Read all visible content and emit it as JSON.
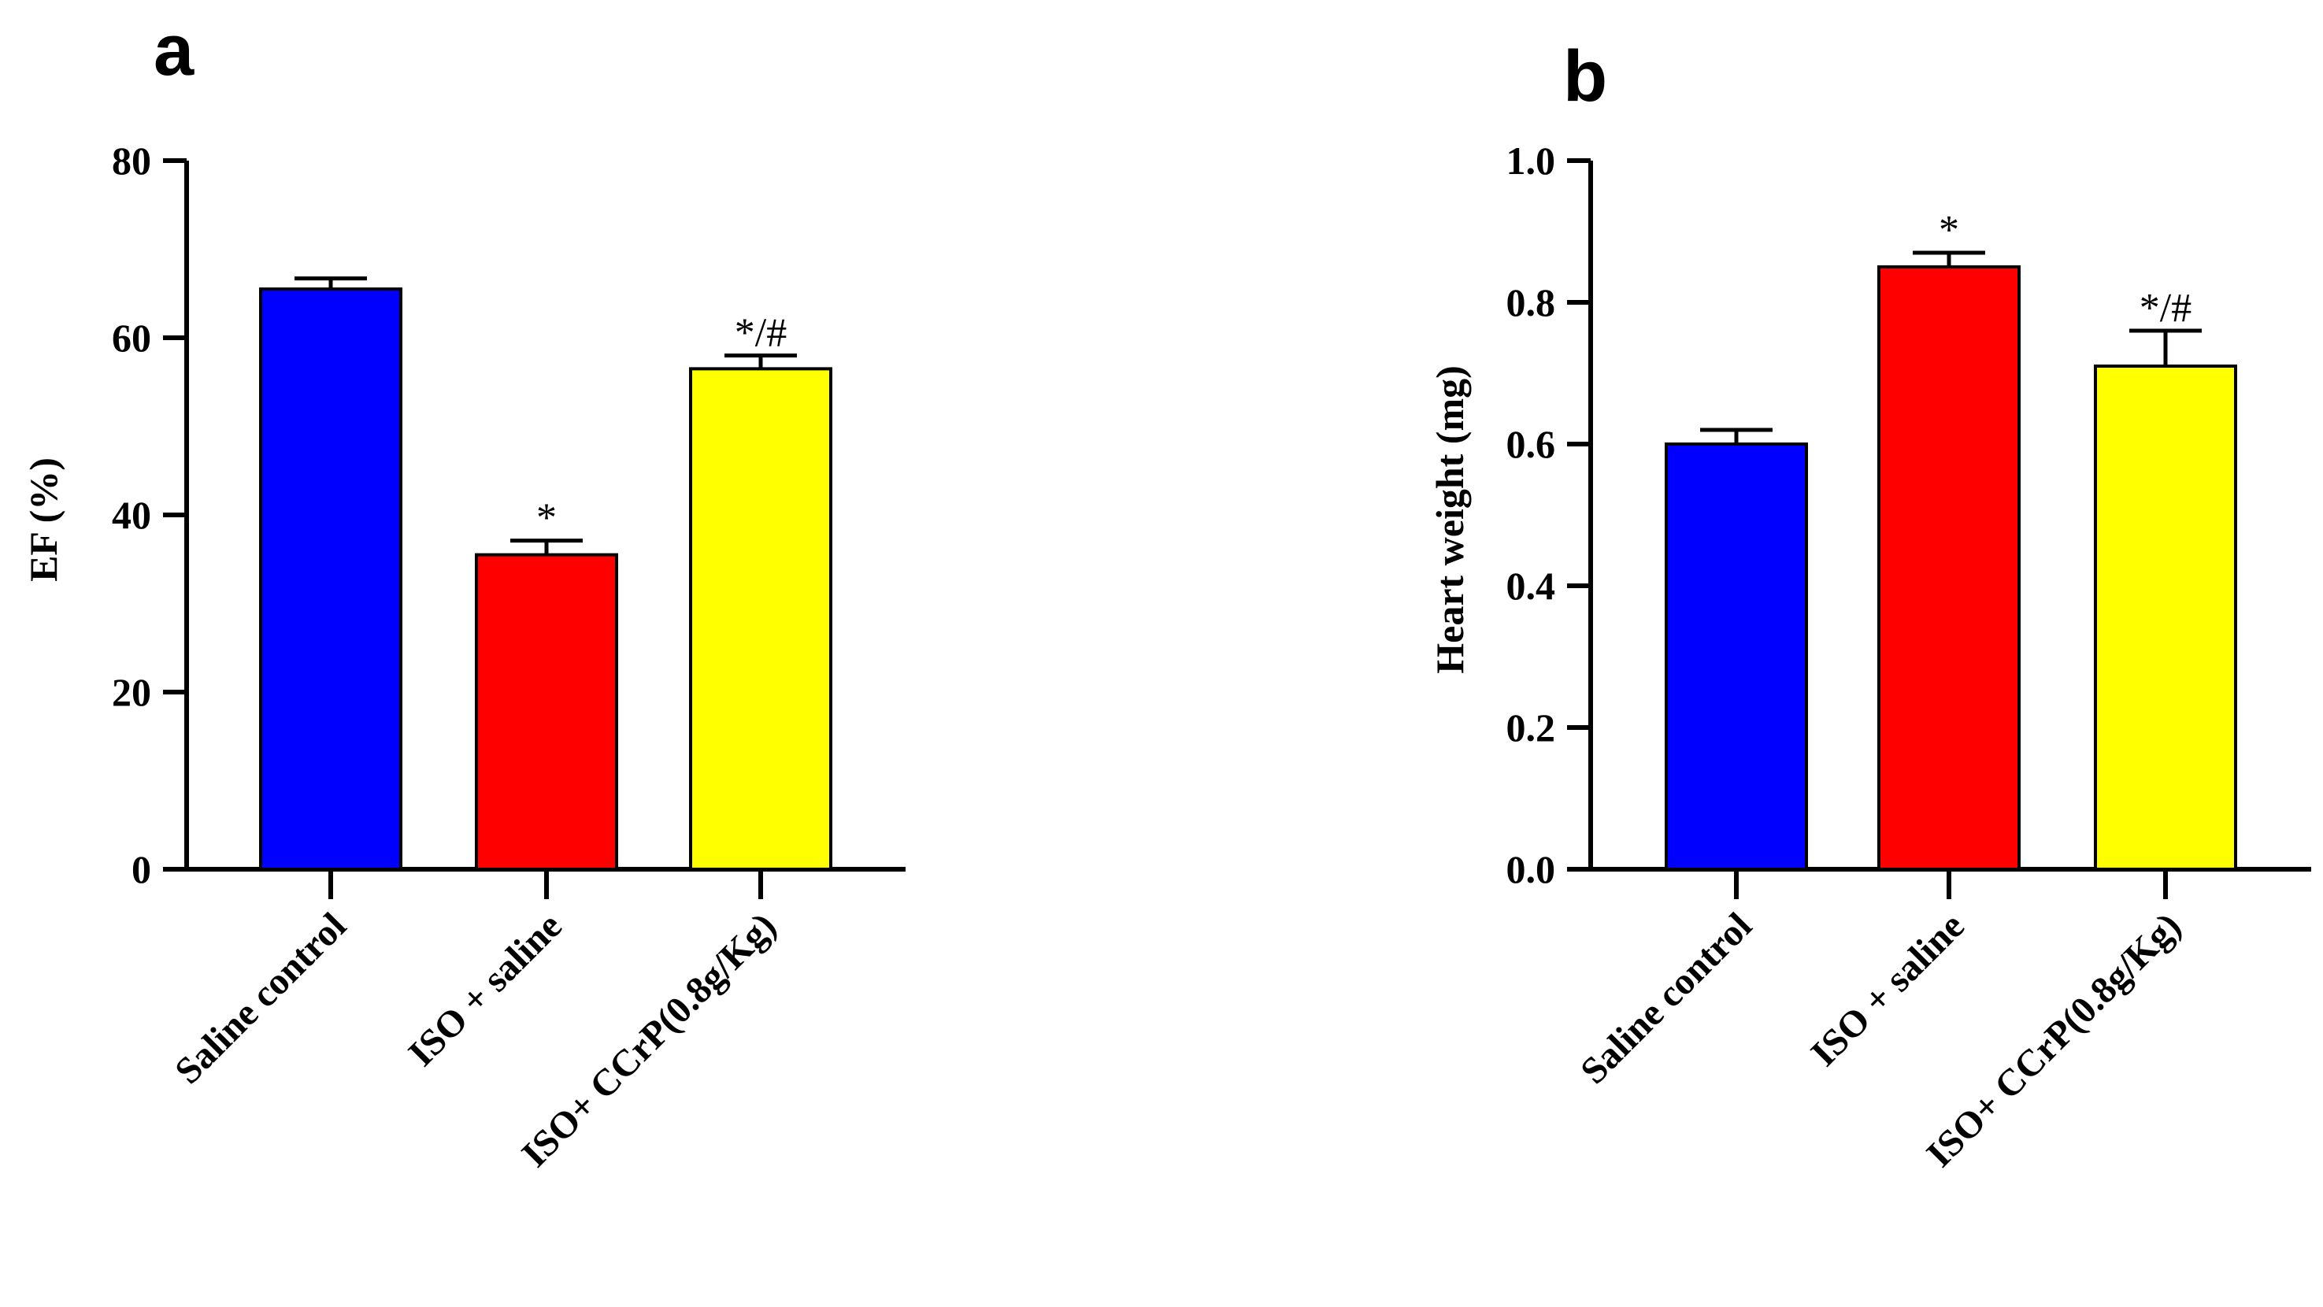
{
  "chart_data": [
    {
      "panel_label": "a",
      "type": "bar",
      "title": "",
      "xlabel": "",
      "ylabel": "EF (%)",
      "ylim": [
        0,
        80
      ],
      "yticks": [
        0,
        20,
        40,
        60,
        80
      ],
      "ytick_labels": [
        "0",
        "20",
        "40",
        "60",
        "80"
      ],
      "grid": false,
      "categories": [
        "Saline control",
        "ISO + saline",
        "ISO+ CCrP(0.8g/Kg)"
      ],
      "values": [
        65.5,
        35.5,
        56.5
      ],
      "errors": [
        1.2,
        1.6,
        1.5
      ],
      "colors": [
        "#0000ff",
        "#ff0000",
        "#ffff00"
      ],
      "annotations": [
        "",
        "*",
        "*/#"
      ]
    },
    {
      "panel_label": "b",
      "type": "bar",
      "title": "",
      "xlabel": "",
      "ylabel": "Heart weight (mg)",
      "ylim": [
        0,
        1.0
      ],
      "yticks": [
        0,
        0.2,
        0.4,
        0.6,
        0.8,
        1.0
      ],
      "ytick_labels": [
        "0.0",
        "0.2",
        "0.4",
        "0.6",
        "0.8",
        "1.0"
      ],
      "grid": false,
      "categories": [
        "Saline control",
        "ISO + saline",
        "ISO+ CCrP(0.8g/Kg)"
      ],
      "values": [
        0.6,
        0.85,
        0.71
      ],
      "errors": [
        0.02,
        0.02,
        0.05
      ],
      "colors": [
        "#0000ff",
        "#ff0000",
        "#ffff00"
      ],
      "annotations": [
        "",
        "*",
        "*/#"
      ]
    }
  ]
}
